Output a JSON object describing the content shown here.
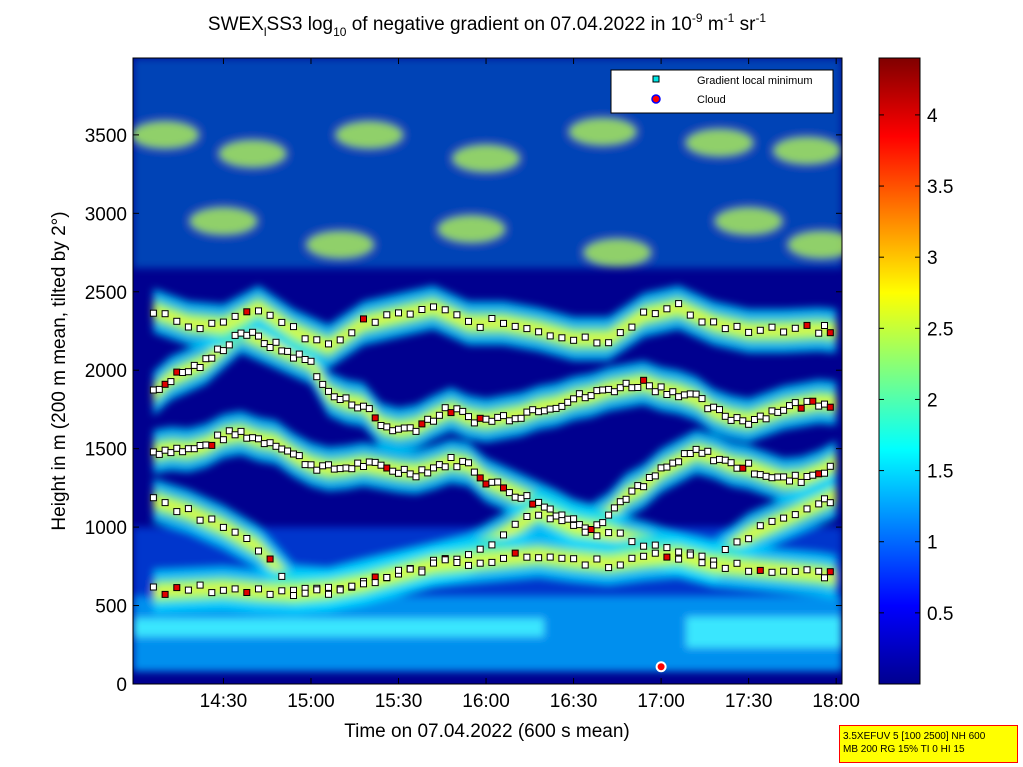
{
  "title": {
    "prefix": "SWEX",
    "prefix_sub": "l",
    "mid": "SS3 log",
    "log_sub": "10",
    "text": " of negative gradient on 07.04.2022 in 10",
    "exp1": "-9",
    "unit1": " m",
    "exp2": "-1",
    "unit2": " sr",
    "exp3": "-1"
  },
  "chart_data": {
    "type": "heatmap",
    "xlabel": "Time on 07.04.2022 (600 s mean)",
    "ylabel": "Height in m (200 m mean, tilted by 2°)",
    "x_ticks": [
      "14:30",
      "15:00",
      "15:30",
      "16:00",
      "16:30",
      "17:00",
      "17:30",
      "18:00"
    ],
    "x_tick_minutes": [
      870,
      900,
      930,
      960,
      990,
      1020,
      1050,
      1080
    ],
    "xlim_minutes": [
      839,
      1082
    ],
    "y_ticks": [
      0,
      500,
      1000,
      1500,
      2000,
      2500,
      3000,
      3500
    ],
    "ylim": [
      0,
      3990
    ],
    "colorbar": {
      "ticks": [
        0.5,
        1,
        1.5,
        2,
        2.5,
        3,
        3.5,
        4
      ],
      "ticklabels": [
        "0.5",
        "1",
        "1.5",
        "2",
        "2.5",
        "3",
        "3.5",
        "4"
      ],
      "range": [
        0,
        4.4
      ],
      "colormap": "jet"
    },
    "legend": {
      "position": "top-right",
      "entries": [
        {
          "label": "Gradient local minimum",
          "marker": "square",
          "color": "#00e5e5"
        },
        {
          "label": "Cloud",
          "marker": "circle",
          "color": "#ff0000",
          "edge": "#0000ff"
        }
      ]
    },
    "gradient_layers_approx": [
      {
        "name": "layer-1",
        "t": [
          846,
          852,
          858,
          864,
          870,
          876,
          882,
          888,
          894,
          900,
          906,
          912,
          918,
          924,
          930,
          936,
          942,
          948,
          954,
          960,
          966,
          972,
          978,
          984,
          990,
          996,
          1002,
          1008,
          1014,
          1020,
          1026,
          1032,
          1038,
          1044,
          1050,
          1056,
          1062,
          1068,
          1074,
          1080
        ],
        "h": [
          1480,
          1500,
          1490,
          1520,
          1580,
          1600,
          1560,
          1540,
          1460,
          1400,
          1370,
          1380,
          1400,
          1380,
          1360,
          1350,
          1380,
          1420,
          1400,
          1300,
          1250,
          1200,
          1150,
          1100,
          1040,
          1010,
          1080,
          1200,
          1260,
          1360,
          1420,
          1480,
          1450,
          1400,
          1380,
          1340,
          1300,
          1310,
          1350,
          1410
        ]
      },
      {
        "name": "layer-2",
        "t": [
          846,
          852,
          858,
          864,
          870,
          876,
          882,
          888,
          894,
          900,
          906,
          912,
          918,
          924,
          930,
          936,
          942,
          948,
          954,
          960,
          966,
          972,
          978,
          984,
          990,
          996,
          1002,
          1008,
          1014,
          1020,
          1026,
          1032,
          1038,
          1044,
          1050,
          1056,
          1062,
          1068,
          1074,
          1080
        ],
        "h": [
          1850,
          1950,
          2000,
          2050,
          2150,
          2250,
          2200,
          2150,
          2100,
          2050,
          1850,
          1800,
          1780,
          1650,
          1620,
          1640,
          1700,
          1750,
          1700,
          1680,
          1700,
          1720,
          1760,
          1780,
          1820,
          1840,
          1880,
          1900,
          1920,
          1880,
          1860,
          1820,
          1740,
          1700,
          1680,
          1720,
          1760,
          1780,
          1800,
          1790
        ]
      },
      {
        "name": "layer-3",
        "t": [
          846,
          858,
          870,
          882,
          894,
          906,
          918,
          930,
          942,
          954,
          966,
          978,
          990,
          1002,
          1014,
          1026,
          1038,
          1050,
          1062,
          1074,
          1080
        ],
        "h": [
          2380,
          2300,
          2280,
          2400,
          2250,
          2150,
          2300,
          2350,
          2400,
          2300,
          2300,
          2260,
          2200,
          2200,
          2350,
          2400,
          2300,
          2250,
          2250,
          2260,
          2250
        ]
      },
      {
        "name": "layer-4",
        "t": [
          846,
          858,
          870,
          882,
          894,
          906,
          918,
          930,
          942,
          954,
          966,
          978,
          990,
          1002,
          1014,
          1026,
          1038,
          1050,
          1062,
          1074,
          1080
        ],
        "h": [
          1170,
          1100,
          1000,
          870,
          620,
          600,
          660,
          710,
          760,
          820,
          950,
          1100,
          1000,
          960,
          900,
          830,
          780,
          950,
          1050,
          1150,
          1200
        ]
      },
      {
        "name": "layer-5",
        "t": [
          846,
          858,
          870,
          882,
          894,
          906,
          918,
          930,
          942,
          954,
          966,
          978,
          990,
          1002,
          1014,
          1026,
          1038,
          1050,
          1062,
          1074,
          1080
        ],
        "h": [
          590,
          600,
          610,
          590,
          580,
          600,
          640,
          700,
          760,
          780,
          800,
          820,
          790,
          770,
          800,
          820,
          760,
          740,
          720,
          700,
          680
        ]
      }
    ],
    "cloud_points": [
      {
        "t": 1020,
        "h": 110
      }
    ]
  },
  "info_box": {
    "line1": "3.5XEFUV 5 [100 2500] NH 600",
    "line2": "MB 200 RG 15% TI 0 HI 15"
  },
  "colors": {
    "background": "#00008f",
    "axes": "#000000",
    "info_bg": "#ffff00",
    "info_border": "#ff0000"
  }
}
